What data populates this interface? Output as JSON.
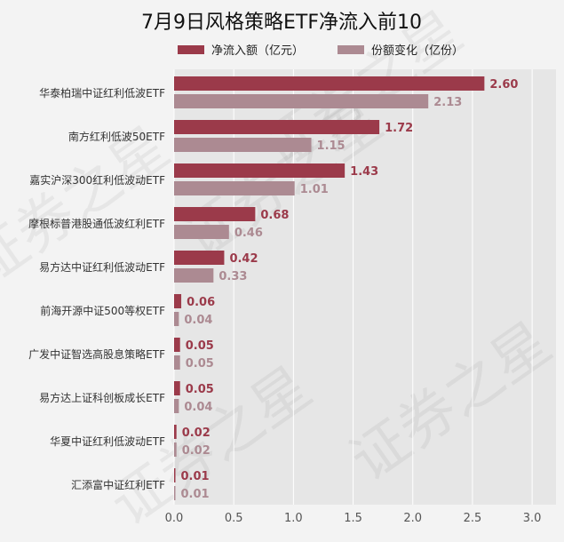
{
  "chart_data": {
    "type": "bar",
    "orientation": "horizontal",
    "title": "7月9日风格策略ETF净流入前10",
    "categories": [
      "华泰柏瑞中证红利低波ETF",
      "南方红利低波50ETF",
      "嘉实沪深300红利低波动ETF",
      "摩根标普港股通低波红利ETF",
      "易方达中证红利低波动ETF",
      "前海开源中证500等权ETF",
      "广发中证智选高股息策略ETF",
      "易方达上证科创板成长ETF",
      "华夏中证红利低波动ETF",
      "汇添富中证红利ETF"
    ],
    "series": [
      {
        "name": "净流入额（亿元）",
        "color": "#9b3a4a",
        "values": [
          2.6,
          1.72,
          1.43,
          0.68,
          0.42,
          0.06,
          0.05,
          0.05,
          0.02,
          0.01
        ],
        "labels": [
          "2.60",
          "1.72",
          "1.43",
          "0.68",
          "0.42",
          "0.06",
          "0.05",
          "0.05",
          "0.02",
          "0.01"
        ]
      },
      {
        "name": "份额变化（亿份）",
        "color": "#ac8a92",
        "values": [
          2.13,
          1.15,
          1.01,
          0.46,
          0.33,
          0.04,
          0.05,
          0.04,
          0.02,
          0.01
        ],
        "labels": [
          "2.13",
          "1.15",
          "1.01",
          "0.46",
          "0.33",
          "0.04",
          "0.05",
          "0.04",
          "0.02",
          "0.01"
        ]
      }
    ],
    "xlim": [
      0,
      3.2
    ],
    "xticks": [
      "0.0",
      "0.5",
      "1.0",
      "1.5",
      "2.0",
      "2.5",
      "3.0"
    ],
    "xtick_values": [
      0,
      0.5,
      1.0,
      1.5,
      2.0,
      2.5,
      3.0
    ],
    "grid": true,
    "legend_position": "top",
    "watermark": "证券之星"
  }
}
